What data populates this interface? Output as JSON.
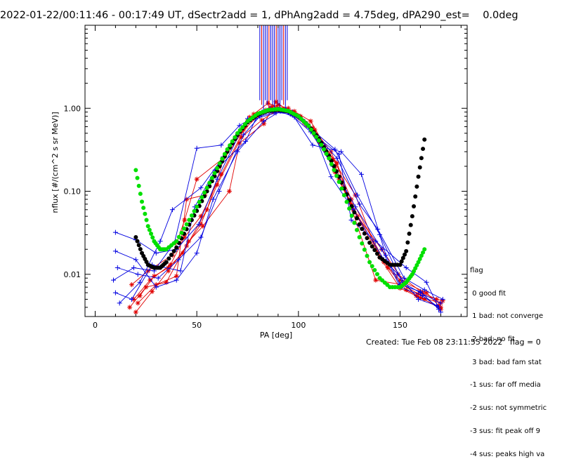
{
  "header": {
    "title": "2022-01-22/00:11:46 - 00:17:49 UT, dSectr2add = 1, dPhAng2add = 4.75deg, dPA290_est=    0.0deg"
  },
  "footer": {
    "created": "Created: Tue Feb 08 23:11:55 2022   flag = 0"
  },
  "legend": {
    "title": "flag",
    "items": [
      " 0 good fit",
      " 1 bad: not converge",
      " 2 bad: no fit",
      " 3 bad: bad fam stat",
      "-1 sus: far off media",
      "-2 sus: not symmetric",
      "-3 sus: fit peak off 9",
      "-4 sus: peaks high va"
    ]
  },
  "colors": {
    "series_red": "#e00000",
    "series_blue": "#0000e0",
    "fit_black": "#000000",
    "fit_green": "#00e000"
  },
  "chart_data": {
    "type": "scatter",
    "xlabel": "PA [deg]",
    "ylabel": "nflux [#/(cm^2 s sr MeV)]",
    "xlim": [
      -5,
      183
    ],
    "ylim": [
      0.0031,
      10.0
    ],
    "yscale": "log",
    "x_ticks": [
      0,
      50,
      100,
      150
    ],
    "y_ticks": [
      0.01,
      0.1,
      1.0
    ],
    "y_tick_labels": [
      "0.01",
      "0.10",
      "1.00"
    ],
    "grid": false,
    "legend_position": "right",
    "series": [
      {
        "color": "red",
        "x": [
          19,
          27,
          37,
          44,
          52,
          62,
          74,
          78,
          85,
          93,
          104,
          118,
          126,
          142,
          150,
          158,
          170
        ],
        "y": [
          0.005,
          0.0085,
          0.013,
          0.028,
          0.05,
          0.16,
          0.6,
          0.85,
          1.15,
          0.98,
          0.62,
          0.2,
          0.07,
          0.014,
          0.0085,
          0.0055,
          0.0045
        ]
      },
      {
        "color": "red",
        "x": [
          20,
          28,
          36,
          45,
          52,
          60,
          72,
          82,
          88,
          96,
          108,
          118,
          127,
          140,
          150,
          160,
          170
        ],
        "y": [
          0.0035,
          0.0062,
          0.011,
          0.022,
          0.04,
          0.12,
          0.45,
          0.72,
          0.9,
          0.88,
          0.55,
          0.17,
          0.06,
          0.016,
          0.0068,
          0.0052,
          0.004
        ]
      },
      {
        "color": "red",
        "x": [
          18,
          26,
          38,
          44,
          50,
          63,
          75,
          84,
          90,
          98,
          106,
          117,
          128,
          139,
          149,
          161,
          168
        ],
        "y": [
          0.0075,
          0.011,
          0.017,
          0.045,
          0.14,
          0.25,
          0.7,
          0.95,
          1.1,
          0.92,
          0.7,
          0.24,
          0.09,
          0.018,
          0.01,
          0.006,
          0.005
        ]
      },
      {
        "color": "red",
        "x": [
          21,
          30,
          40,
          45,
          54,
          61,
          73,
          80,
          87,
          95,
          103,
          119,
          125,
          138,
          151,
          159,
          171
        ],
        "y": [
          0.0045,
          0.0075,
          0.0095,
          0.08,
          0.09,
          0.2,
          0.55,
          0.8,
          1.05,
          1.0,
          0.66,
          0.22,
          0.075,
          0.0085,
          0.0075,
          0.0058,
          0.0048
        ]
      },
      {
        "color": "red",
        "x": [
          22,
          29,
          36,
          43,
          55,
          64,
          76,
          86,
          91,
          101,
          110,
          120,
          129,
          141,
          152,
          163,
          169
        ],
        "y": [
          0.0055,
          0.0095,
          0.012,
          0.018,
          0.06,
          0.28,
          0.78,
          1.0,
          0.95,
          0.8,
          0.4,
          0.14,
          0.05,
          0.02,
          0.008,
          0.006,
          0.0042
        ]
      },
      {
        "color": "red",
        "x": [
          17,
          25,
          35,
          46,
          53,
          66,
          71,
          83,
          89,
          97,
          107,
          116,
          126,
          144,
          153,
          162,
          170
        ],
        "y": [
          0.004,
          0.007,
          0.008,
          0.025,
          0.038,
          0.1,
          0.38,
          0.65,
          1.2,
          0.85,
          0.58,
          0.3,
          0.08,
          0.012,
          0.0065,
          0.005,
          0.0038
        ]
      },
      {
        "color": "blue",
        "x": [
          10,
          20,
          30,
          40,
          51,
          60,
          72,
          80,
          87,
          95,
          105,
          118,
          129,
          140,
          151,
          160,
          170
        ],
        "y": [
          0.032,
          0.026,
          0.018,
          0.02,
          0.04,
          0.14,
          0.55,
          0.85,
          0.95,
          0.92,
          0.6,
          0.32,
          0.09,
          0.03,
          0.008,
          0.006,
          0.0045
        ]
      },
      {
        "color": "blue",
        "x": [
          11,
          21,
          31,
          41,
          52,
          61,
          73,
          81,
          88,
          96,
          106,
          117,
          128,
          141,
          150,
          161,
          169
        ],
        "y": [
          0.012,
          0.01,
          0.009,
          0.015,
          0.028,
          0.1,
          0.48,
          0.8,
          0.9,
          0.85,
          0.52,
          0.2,
          0.065,
          0.02,
          0.007,
          0.0055,
          0.004
        ]
      },
      {
        "color": "blue",
        "x": [
          9,
          19,
          29,
          39,
          50,
          62,
          71,
          82,
          86,
          94,
          104,
          119,
          130,
          139,
          152,
          162,
          171
        ],
        "y": [
          0.0085,
          0.012,
          0.011,
          0.024,
          0.33,
          0.36,
          0.62,
          0.9,
          1.0,
          0.96,
          0.64,
          0.25,
          0.07,
          0.035,
          0.009,
          0.0065,
          0.005
        ]
      },
      {
        "color": "blue",
        "x": [
          10,
          18,
          28,
          42,
          49,
          59,
          74,
          79,
          89,
          97,
          108,
          116,
          127,
          142,
          149,
          159,
          168
        ],
        "y": [
          0.006,
          0.005,
          0.013,
          0.011,
          0.065,
          0.18,
          0.4,
          0.75,
          0.88,
          0.9,
          0.48,
          0.15,
          0.06,
          0.015,
          0.01,
          0.005,
          0.0042
        ]
      },
      {
        "color": "blue",
        "x": [
          12,
          22,
          32,
          38,
          52,
          63,
          75,
          84,
          90,
          99,
          109,
          120,
          126,
          138,
          153,
          163,
          170
        ],
        "y": [
          0.0045,
          0.008,
          0.025,
          0.06,
          0.11,
          0.26,
          0.75,
          0.92,
          0.98,
          0.82,
          0.45,
          0.28,
          0.045,
          0.025,
          0.012,
          0.008,
          0.0035
        ]
      },
      {
        "color": "blue",
        "x": [
          10,
          20,
          30,
          40,
          50,
          58,
          70,
          83,
          91,
          98,
          107,
          121,
          131,
          143,
          150,
          160,
          169
        ],
        "y": [
          0.019,
          0.015,
          0.007,
          0.0085,
          0.018,
          0.08,
          0.3,
          0.7,
          0.92,
          0.78,
          0.36,
          0.3,
          0.16,
          0.017,
          0.0075,
          0.0062,
          0.0038
        ]
      }
    ],
    "fit_curves": [
      {
        "color": "black",
        "x": [
          20,
          23,
          26,
          29,
          32,
          35,
          40,
          45,
          50,
          55,
          60,
          65,
          70,
          75,
          80,
          85,
          90,
          95,
          100,
          105,
          110,
          115,
          120,
          125,
          130,
          135,
          140,
          145,
          150,
          153,
          156,
          159,
          162
        ],
        "y": [
          0.028,
          0.018,
          0.013,
          0.012,
          0.012,
          0.014,
          0.021,
          0.035,
          0.058,
          0.1,
          0.175,
          0.3,
          0.48,
          0.68,
          0.84,
          0.93,
          0.96,
          0.92,
          0.8,
          0.62,
          0.43,
          0.27,
          0.15,
          0.078,
          0.04,
          0.024,
          0.016,
          0.013,
          0.013,
          0.019,
          0.05,
          0.15,
          0.42
        ]
      },
      {
        "color": "green",
        "x": [
          20,
          23,
          26,
          29,
          32,
          35,
          40,
          45,
          50,
          55,
          60,
          65,
          70,
          75,
          80,
          85,
          90,
          95,
          100,
          105,
          110,
          115,
          120,
          125,
          130,
          135,
          140,
          145,
          150,
          153,
          156,
          159,
          162
        ],
        "y": [
          0.18,
          0.075,
          0.038,
          0.025,
          0.02,
          0.02,
          0.025,
          0.04,
          0.065,
          0.11,
          0.19,
          0.32,
          0.5,
          0.7,
          0.86,
          0.95,
          0.98,
          0.93,
          0.8,
          0.61,
          0.41,
          0.25,
          0.13,
          0.062,
          0.028,
          0.014,
          0.009,
          0.007,
          0.007,
          0.008,
          0.01,
          0.014,
          0.02
        ]
      }
    ]
  }
}
